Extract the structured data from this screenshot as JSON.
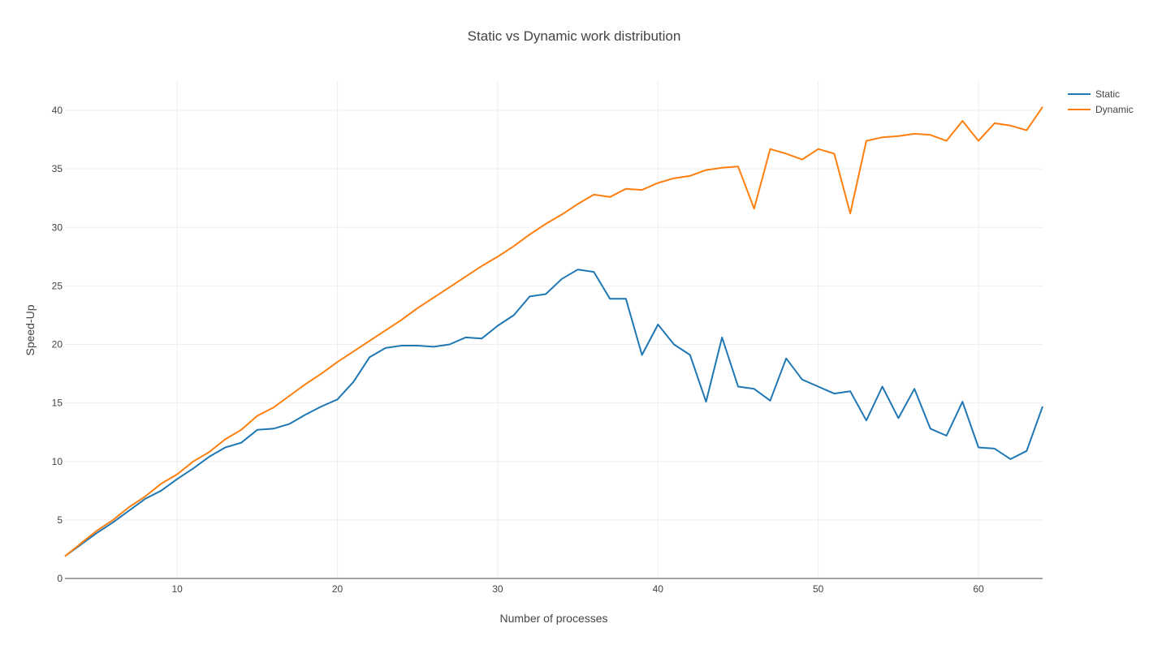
{
  "chart_data": {
    "type": "line",
    "title": "Static vs Dynamic work distribution",
    "xlabel": "Number of processes",
    "ylabel": "Speed-Up",
    "xlim": [
      3,
      64
    ],
    "ylim": [
      0,
      42.5
    ],
    "xticks": [
      10,
      20,
      30,
      40,
      50,
      60
    ],
    "yticks": [
      0,
      5,
      10,
      15,
      20,
      25,
      30,
      35,
      40
    ],
    "grid": true,
    "legend_position": "top-right",
    "x": [
      3,
      4,
      5,
      6,
      7,
      8,
      9,
      10,
      11,
      12,
      13,
      14,
      15,
      16,
      17,
      18,
      19,
      20,
      21,
      22,
      23,
      24,
      25,
      26,
      27,
      28,
      29,
      30,
      31,
      32,
      33,
      34,
      35,
      36,
      37,
      38,
      39,
      40,
      41,
      42,
      43,
      44,
      45,
      46,
      47,
      48,
      49,
      50,
      51,
      52,
      53,
      54,
      55,
      56,
      57,
      58,
      59,
      60,
      61,
      62,
      63,
      64
    ],
    "series": [
      {
        "name": "Static",
        "color": "#1f77b4",
        "values": [
          1.9,
          2.9,
          3.9,
          4.8,
          5.8,
          6.8,
          7.5,
          8.5,
          9.4,
          10.4,
          11.2,
          11.6,
          12.7,
          12.8,
          13.2,
          14.0,
          14.7,
          15.3,
          16.8,
          18.9,
          19.7,
          19.9,
          19.9,
          19.8,
          20.0,
          20.6,
          20.5,
          21.6,
          22.5,
          24.1,
          24.3,
          25.6,
          26.4,
          26.2,
          23.9,
          23.9,
          19.1,
          21.7,
          20.0,
          19.1,
          15.1,
          20.6,
          16.4,
          16.2,
          15.2,
          18.8,
          17.0,
          16.4,
          15.8,
          16.0,
          13.5,
          16.4,
          13.7,
          16.2,
          12.8,
          12.2,
          15.1,
          11.2,
          11.1,
          10.2,
          10.9,
          14.7
        ]
      },
      {
        "name": "Dynamic",
        "color": "#ff7f0e",
        "values": [
          1.9,
          3.0,
          4.1,
          5.0,
          6.1,
          7.0,
          8.1,
          8.9,
          10.0,
          10.8,
          11.9,
          12.7,
          13.9,
          14.6,
          15.6,
          16.6,
          17.5,
          18.5,
          19.4,
          20.3,
          21.2,
          22.1,
          23.1,
          24.0,
          24.9,
          25.8,
          26.7,
          27.5,
          28.4,
          29.4,
          30.3,
          31.1,
          32.0,
          32.8,
          32.6,
          33.3,
          33.2,
          33.8,
          34.2,
          34.4,
          34.9,
          35.1,
          35.2,
          31.6,
          36.7,
          36.3,
          35.8,
          36.7,
          36.3,
          31.2,
          37.4,
          37.7,
          37.8,
          38.0,
          37.9,
          37.4,
          39.1,
          37.4,
          38.9,
          38.7,
          38.3,
          40.3
        ]
      }
    ]
  }
}
